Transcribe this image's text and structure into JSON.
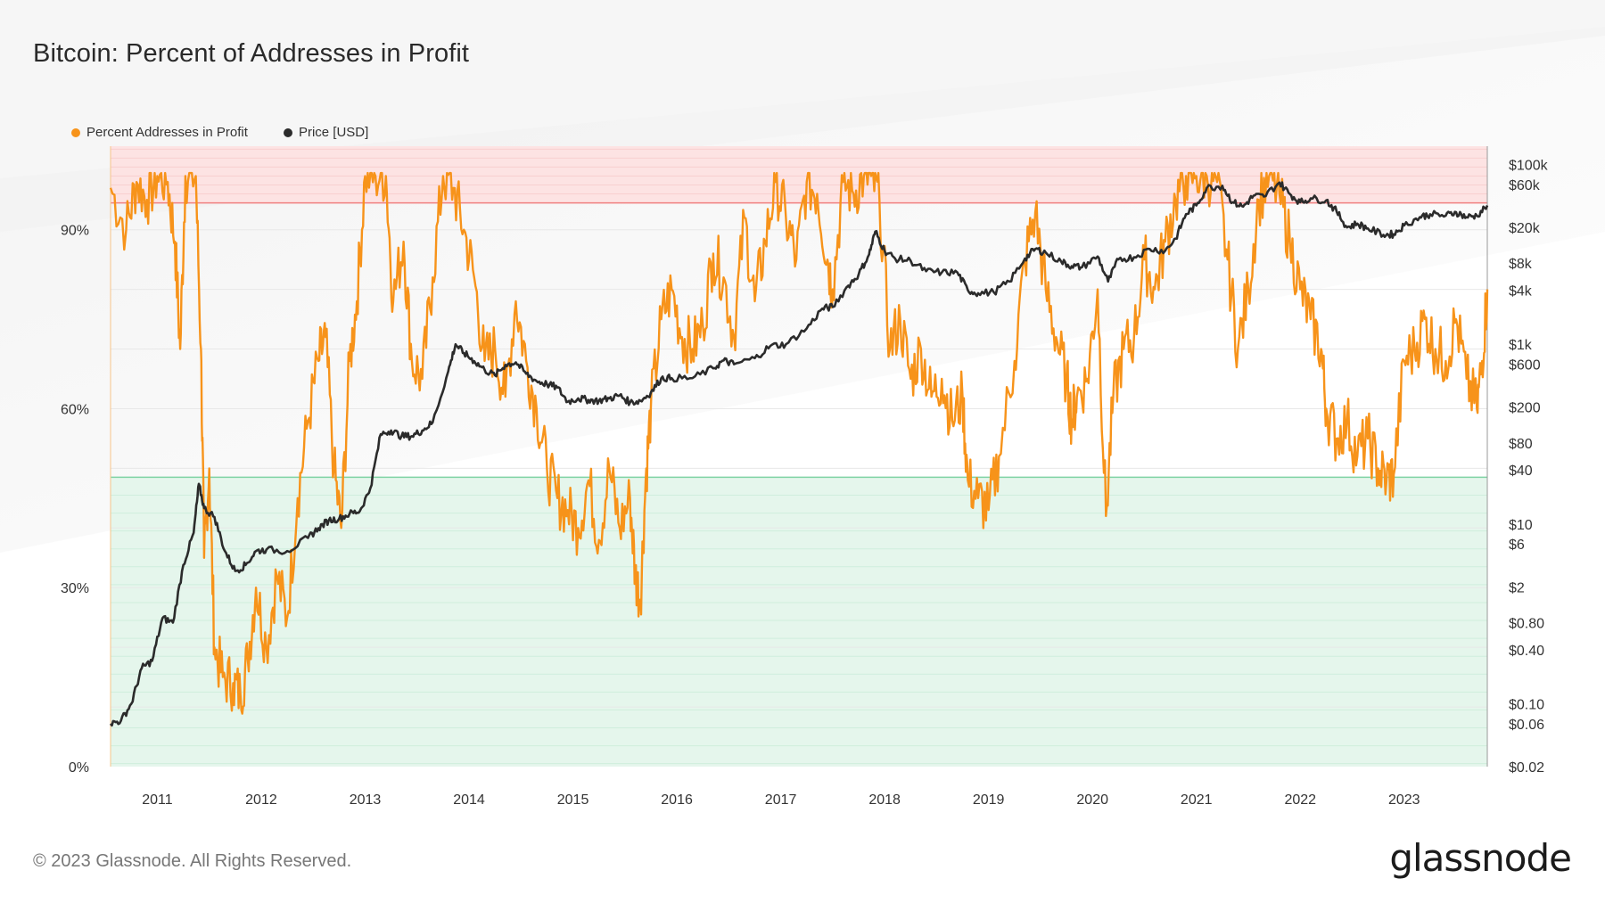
{
  "title": "Bitcoin: Percent of Addresses in Profit",
  "footer": "© 2023 Glassnode. All Rights Reserved.",
  "brand": "glassnode",
  "chart_data": {
    "type": "line",
    "title": "Bitcoin: Percent of Addresses in Profit",
    "legend_placement": "top-left",
    "grid": true,
    "colors": {
      "profit": "#f7931a",
      "price": "#2b2b2b",
      "upper_band": "#fde3e3",
      "upper_line": "#f08080",
      "lower_band": "#e5f6ec",
      "lower_line": "#7fd3a4"
    },
    "bands": {
      "upper_threshold_pct": 94.5,
      "lower_threshold_pct": 48.5
    },
    "x_axis": {
      "range": [
        2010.6,
        2023.85
      ],
      "tick_labels": [
        "2011",
        "2012",
        "2013",
        "2014",
        "2015",
        "2016",
        "2017",
        "2018",
        "2019",
        "2020",
        "2021",
        "2022",
        "2023"
      ]
    },
    "y_left": {
      "range": [
        0,
        104
      ],
      "ticks": [
        0,
        30,
        60,
        90
      ],
      "tick_labels": [
        "0%",
        "30%",
        "60%",
        "90%"
      ]
    },
    "y_right": {
      "scale": "log",
      "range": [
        0.02,
        160000
      ],
      "ticks": [
        100000,
        60000,
        20000,
        8000,
        4000,
        1000,
        600,
        200,
        80,
        40,
        10,
        6,
        2,
        0.8,
        0.4,
        0.1,
        0.06,
        0.02
      ],
      "tick_labels": [
        "$100k",
        "$60k",
        "$20k",
        "$8k",
        "$4k",
        "$1k",
        "$600",
        "$200",
        "$80",
        "$40",
        "$10",
        "$6",
        "$2",
        "$0.80",
        "$0.40",
        "$0.10",
        "$0.06",
        "$0.02"
      ]
    },
    "series": [
      {
        "name": "Percent Addresses in Profit",
        "axis": "left",
        "points": [
          [
            2010.6,
            97
          ],
          [
            2010.75,
            90
          ],
          [
            2010.85,
            98
          ],
          [
            2010.95,
            95
          ],
          [
            2011.05,
            99
          ],
          [
            2011.15,
            98
          ],
          [
            2011.22,
            88
          ],
          [
            2011.27,
            70
          ],
          [
            2011.32,
            99
          ],
          [
            2011.42,
            99
          ],
          [
            2011.47,
            70
          ],
          [
            2011.5,
            35
          ],
          [
            2011.55,
            50
          ],
          [
            2011.6,
            20
          ],
          [
            2011.68,
            15
          ],
          [
            2011.78,
            14
          ],
          [
            2011.85,
            12
          ],
          [
            2011.92,
            18
          ],
          [
            2012.0,
            30
          ],
          [
            2012.1,
            20
          ],
          [
            2012.2,
            32
          ],
          [
            2012.3,
            25
          ],
          [
            2012.4,
            45
          ],
          [
            2012.5,
            58
          ],
          [
            2012.6,
            68
          ],
          [
            2012.67,
            72
          ],
          [
            2012.75,
            50
          ],
          [
            2012.82,
            40
          ],
          [
            2012.9,
            68
          ],
          [
            2012.97,
            78
          ],
          [
            2013.05,
            99
          ],
          [
            2013.15,
            99
          ],
          [
            2013.25,
            99
          ],
          [
            2013.32,
            78
          ],
          [
            2013.42,
            88
          ],
          [
            2013.5,
            68
          ],
          [
            2013.6,
            65
          ],
          [
            2013.7,
            82
          ],
          [
            2013.8,
            99
          ],
          [
            2013.9,
            97
          ],
          [
            2014.0,
            90
          ],
          [
            2014.1,
            82
          ],
          [
            2014.2,
            68
          ],
          [
            2014.3,
            70
          ],
          [
            2014.4,
            62
          ],
          [
            2014.5,
            78
          ],
          [
            2014.6,
            68
          ],
          [
            2014.7,
            60
          ],
          [
            2014.8,
            50
          ],
          [
            2014.9,
            45
          ],
          [
            2015.0,
            43
          ],
          [
            2015.1,
            40
          ],
          [
            2015.2,
            48
          ],
          [
            2015.3,
            38
          ],
          [
            2015.4,
            50
          ],
          [
            2015.5,
            40
          ],
          [
            2015.6,
            45
          ],
          [
            2015.65,
            32
          ],
          [
            2015.7,
            28
          ],
          [
            2015.75,
            48
          ],
          [
            2015.8,
            60
          ],
          [
            2015.9,
            75
          ],
          [
            2016.0,
            80
          ],
          [
            2016.1,
            72
          ],
          [
            2016.2,
            70
          ],
          [
            2016.3,
            74
          ],
          [
            2016.4,
            86
          ],
          [
            2016.5,
            82
          ],
          [
            2016.6,
            72
          ],
          [
            2016.7,
            92
          ],
          [
            2016.8,
            78
          ],
          [
            2016.9,
            88
          ],
          [
            2017.0,
            98
          ],
          [
            2017.1,
            92
          ],
          [
            2017.2,
            85
          ],
          [
            2017.3,
            98
          ],
          [
            2017.4,
            96
          ],
          [
            2017.5,
            85
          ],
          [
            2017.55,
            80
          ],
          [
            2017.65,
            98
          ],
          [
            2017.75,
            96
          ],
          [
            2017.85,
            99
          ],
          [
            2017.92,
            99
          ],
          [
            2018.0,
            95
          ],
          [
            2018.1,
            70
          ],
          [
            2018.2,
            75
          ],
          [
            2018.3,
            65
          ],
          [
            2018.4,
            70
          ],
          [
            2018.5,
            62
          ],
          [
            2018.6,
            65
          ],
          [
            2018.7,
            58
          ],
          [
            2018.8,
            62
          ],
          [
            2018.85,
            48
          ],
          [
            2018.95,
            45
          ],
          [
            2019.05,
            43
          ],
          [
            2019.15,
            52
          ],
          [
            2019.3,
            68
          ],
          [
            2019.4,
            85
          ],
          [
            2019.5,
            93
          ],
          [
            2019.6,
            80
          ],
          [
            2019.7,
            72
          ],
          [
            2019.8,
            65
          ],
          [
            2019.85,
            58
          ],
          [
            2019.9,
            62
          ],
          [
            2020.0,
            65
          ],
          [
            2020.1,
            80
          ],
          [
            2020.18,
            42
          ],
          [
            2020.25,
            62
          ],
          [
            2020.35,
            70
          ],
          [
            2020.45,
            72
          ],
          [
            2020.55,
            85
          ],
          [
            2020.65,
            80
          ],
          [
            2020.75,
            88
          ],
          [
            2020.85,
            95
          ],
          [
            2020.95,
            99
          ],
          [
            2021.05,
            99
          ],
          [
            2021.15,
            99
          ],
          [
            2021.25,
            98
          ],
          [
            2021.35,
            85
          ],
          [
            2021.45,
            70
          ],
          [
            2021.55,
            80
          ],
          [
            2021.65,
            95
          ],
          [
            2021.75,
            99
          ],
          [
            2021.85,
            96
          ],
          [
            2021.95,
            88
          ],
          [
            2022.05,
            80
          ],
          [
            2022.15,
            75
          ],
          [
            2022.25,
            70
          ],
          [
            2022.3,
            60
          ],
          [
            2022.4,
            55
          ],
          [
            2022.5,
            58
          ],
          [
            2022.6,
            52
          ],
          [
            2022.7,
            55
          ],
          [
            2022.8,
            50
          ],
          [
            2022.88,
            48
          ],
          [
            2022.95,
            49
          ],
          [
            2023.05,
            68
          ],
          [
            2023.15,
            70
          ],
          [
            2023.25,
            75
          ],
          [
            2023.35,
            70
          ],
          [
            2023.45,
            68
          ],
          [
            2023.55,
            75
          ],
          [
            2023.65,
            65
          ],
          [
            2023.75,
            60
          ],
          [
            2023.8,
            68
          ],
          [
            2023.85,
            80
          ]
        ]
      },
      {
        "name": "Price [USD]",
        "axis": "right",
        "points": [
          [
            2010.6,
            0.06
          ],
          [
            2010.7,
            0.065
          ],
          [
            2010.8,
            0.1
          ],
          [
            2010.9,
            0.25
          ],
          [
            2011.0,
            0.3
          ],
          [
            2011.1,
            0.9
          ],
          [
            2011.2,
            0.8
          ],
          [
            2011.3,
            3.5
          ],
          [
            2011.4,
            8
          ],
          [
            2011.45,
            28
          ],
          [
            2011.5,
            15
          ],
          [
            2011.6,
            12
          ],
          [
            2011.7,
            5
          ],
          [
            2011.8,
            3
          ],
          [
            2011.9,
            3.5
          ],
          [
            2012.0,
            5
          ],
          [
            2012.1,
            5.2
          ],
          [
            2012.3,
            5
          ],
          [
            2012.5,
            7
          ],
          [
            2012.6,
            9
          ],
          [
            2012.7,
            11
          ],
          [
            2012.8,
            11.5
          ],
          [
            2012.9,
            13
          ],
          [
            2013.0,
            14
          ],
          [
            2013.1,
            25
          ],
          [
            2013.2,
            100
          ],
          [
            2013.3,
            110
          ],
          [
            2013.4,
            95
          ],
          [
            2013.5,
            95
          ],
          [
            2013.6,
            110
          ],
          [
            2013.7,
            135
          ],
          [
            2013.85,
            500
          ],
          [
            2013.92,
            1000
          ],
          [
            2014.0,
            800
          ],
          [
            2014.1,
            650
          ],
          [
            2014.2,
            520
          ],
          [
            2014.3,
            450
          ],
          [
            2014.4,
            590
          ],
          [
            2014.5,
            630
          ],
          [
            2014.6,
            470
          ],
          [
            2014.7,
            390
          ],
          [
            2014.8,
            360
          ],
          [
            2014.9,
            330
          ],
          [
            2015.0,
            230
          ],
          [
            2015.1,
            250
          ],
          [
            2015.2,
            240
          ],
          [
            2015.3,
            235
          ],
          [
            2015.4,
            250
          ],
          [
            2015.5,
            270
          ],
          [
            2015.6,
            225
          ],
          [
            2015.7,
            235
          ],
          [
            2015.8,
            290
          ],
          [
            2015.9,
            420
          ],
          [
            2016.0,
            420
          ],
          [
            2016.2,
            420
          ],
          [
            2016.4,
            540
          ],
          [
            2016.5,
            660
          ],
          [
            2016.6,
            600
          ],
          [
            2016.8,
            700
          ],
          [
            2016.95,
            960
          ],
          [
            2017.1,
            1000
          ],
          [
            2017.3,
            1500
          ],
          [
            2017.45,
            2500
          ],
          [
            2017.55,
            2600
          ],
          [
            2017.7,
            4500
          ],
          [
            2017.8,
            6000
          ],
          [
            2017.9,
            10000
          ],
          [
            2017.96,
            18000
          ],
          [
            2018.05,
            11000
          ],
          [
            2018.15,
            9000
          ],
          [
            2018.3,
            8500
          ],
          [
            2018.45,
            6500
          ],
          [
            2018.6,
            6300
          ],
          [
            2018.75,
            6300
          ],
          [
            2018.85,
            4000
          ],
          [
            2018.95,
            3700
          ],
          [
            2019.1,
            3800
          ],
          [
            2019.25,
            5000
          ],
          [
            2019.4,
            9000
          ],
          [
            2019.5,
            11500
          ],
          [
            2019.6,
            10500
          ],
          [
            2019.75,
            8300
          ],
          [
            2019.85,
            7400
          ],
          [
            2019.95,
            7200
          ],
          [
            2020.1,
            9500
          ],
          [
            2020.2,
            5000
          ],
          [
            2020.3,
            8800
          ],
          [
            2020.45,
            9300
          ],
          [
            2020.6,
            11500
          ],
          [
            2020.75,
            11000
          ],
          [
            2020.85,
            15000
          ],
          [
            2020.95,
            28000
          ],
          [
            2021.05,
            35000
          ],
          [
            2021.15,
            55000
          ],
          [
            2021.3,
            58000
          ],
          [
            2021.4,
            38000
          ],
          [
            2021.5,
            34000
          ],
          [
            2021.6,
            45000
          ],
          [
            2021.7,
            44000
          ],
          [
            2021.85,
            63000
          ],
          [
            2021.95,
            47000
          ],
          [
            2022.05,
            38000
          ],
          [
            2022.15,
            42000
          ],
          [
            2022.3,
            40000
          ],
          [
            2022.4,
            30000
          ],
          [
            2022.5,
            20000
          ],
          [
            2022.6,
            22000
          ],
          [
            2022.7,
            19500
          ],
          [
            2022.85,
            16500
          ],
          [
            2022.95,
            16800
          ],
          [
            2023.05,
            21000
          ],
          [
            2023.2,
            26000
          ],
          [
            2023.3,
            28000
          ],
          [
            2023.45,
            27000
          ],
          [
            2023.55,
            29500
          ],
          [
            2023.65,
            26000
          ],
          [
            2023.75,
            27000
          ],
          [
            2023.85,
            35000
          ]
        ]
      }
    ]
  },
  "legend": {
    "profit_label": "Percent Addresses in Profit",
    "price_label": "Price [USD]"
  }
}
